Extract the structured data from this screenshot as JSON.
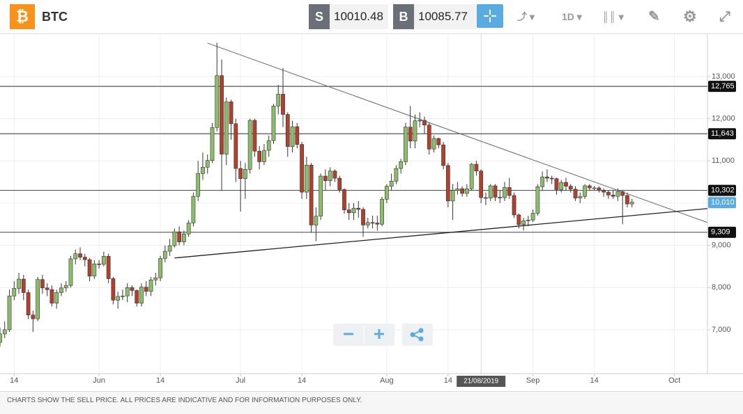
{
  "header": {
    "symbol": "BTC",
    "sell_label": "S",
    "sell_price": "10010.48",
    "buy_label": "B",
    "buy_price": "10085.77",
    "interval": "1D"
  },
  "footer": "CHARTS SHOW THE SELL PRICE. ALL PRICES ARE INDICATIVE AND FOR INFORMATION PURPOSES ONLY.",
  "chart_data": {
    "type": "candlestick",
    "x": [
      "2019-05-11",
      "2019-05-12",
      "2019-05-13",
      "2019-05-14",
      "2019-05-15",
      "2019-05-16",
      "2019-05-17",
      "2019-05-18",
      "2019-05-19",
      "2019-05-20",
      "2019-05-21",
      "2019-05-22",
      "2019-05-23",
      "2019-05-24",
      "2019-05-25",
      "2019-05-26",
      "2019-05-27",
      "2019-05-28",
      "2019-05-29",
      "2019-05-30",
      "2019-05-31",
      "2019-06-01",
      "2019-06-02",
      "2019-06-03",
      "2019-06-04",
      "2019-06-05",
      "2019-06-06",
      "2019-06-07",
      "2019-06-08",
      "2019-06-09",
      "2019-06-10",
      "2019-06-11",
      "2019-06-12",
      "2019-06-13",
      "2019-06-14",
      "2019-06-15",
      "2019-06-16",
      "2019-06-17",
      "2019-06-18",
      "2019-06-19",
      "2019-06-20",
      "2019-06-21",
      "2019-06-22",
      "2019-06-23",
      "2019-06-24",
      "2019-06-25",
      "2019-06-26",
      "2019-06-27",
      "2019-06-28",
      "2019-06-29",
      "2019-06-30",
      "2019-07-01",
      "2019-07-02",
      "2019-07-03",
      "2019-07-04",
      "2019-07-05",
      "2019-07-06",
      "2019-07-07",
      "2019-07-08",
      "2019-07-09",
      "2019-07-10",
      "2019-07-11",
      "2019-07-12",
      "2019-07-13",
      "2019-07-14",
      "2019-07-15",
      "2019-07-16",
      "2019-07-17",
      "2019-07-18",
      "2019-07-19",
      "2019-07-20",
      "2019-07-21",
      "2019-07-22",
      "2019-07-23",
      "2019-07-24",
      "2019-07-25",
      "2019-07-26",
      "2019-07-27",
      "2019-07-28",
      "2019-07-29",
      "2019-07-30",
      "2019-07-31",
      "2019-08-01",
      "2019-08-02",
      "2019-08-03",
      "2019-08-04",
      "2019-08-05",
      "2019-08-06",
      "2019-08-07",
      "2019-08-08",
      "2019-08-09",
      "2019-08-10",
      "2019-08-11",
      "2019-08-12",
      "2019-08-13",
      "2019-08-14",
      "2019-08-15",
      "2019-08-16",
      "2019-08-17",
      "2019-08-18",
      "2019-08-19",
      "2019-08-20",
      "2019-08-21",
      "2019-08-22",
      "2019-08-23",
      "2019-08-24",
      "2019-08-25",
      "2019-08-26",
      "2019-08-27",
      "2019-08-28",
      "2019-08-29",
      "2019-08-30",
      "2019-08-31",
      "2019-09-01",
      "2019-09-02",
      "2019-09-03",
      "2019-09-04",
      "2019-09-05",
      "2019-09-06",
      "2019-09-07",
      "2019-09-08",
      "2019-09-09",
      "2019-09-10",
      "2019-09-11",
      "2019-09-12",
      "2019-09-13",
      "2019-09-14",
      "2019-09-15",
      "2019-09-16",
      "2019-09-17",
      "2019-09-18",
      "2019-09-19",
      "2019-09-20",
      "2019-09-21",
      "2019-09-22"
    ],
    "open": [
      6700,
      6900,
      7000,
      7800,
      7980,
      8200,
      7880,
      7350,
      7260,
      8190,
      7990,
      7950,
      7630,
      7880,
      7990,
      8050,
      8680,
      8800,
      8720,
      8660,
      8270,
      8560,
      8550,
      8740,
      8210,
      7700,
      7790,
      7800,
      8000,
      7930,
      7630,
      8010,
      7910,
      8180,
      8230,
      8690,
      8860,
      8990,
      9320,
      9080,
      9270,
      9530,
      10160,
      10700,
      10850,
      11010,
      11790,
      13020,
      11160,
      12400,
      11880,
      10820,
      10580,
      10800,
      11960,
      11230,
      10980,
      11250,
      11480,
      12300,
      12580,
      12100,
      11340,
      11810,
      11390,
      10260,
      10900,
      9480,
      9690,
      10640,
      10530,
      10760,
      10590,
      10320,
      9840,
      9770,
      9880,
      9850,
      9480,
      9540,
      9530,
      9500,
      10090,
      10400,
      10520,
      10820,
      10980,
      11800,
      11470,
      11950,
      11960,
      11850,
      11280,
      11530,
      11380,
      10890,
      10050,
      10300,
      10340,
      10230,
      10340,
      10920,
      10760,
      10130,
      10120,
      10410,
      10140,
      10130,
      10370,
      10180,
      9720,
      9490,
      9580,
      9600,
      9760,
      10390,
      10620,
      10590,
      10580,
      10320,
      10490,
      10400,
      10330,
      10120,
      10160,
      10410,
      10360,
      10360,
      10300,
      10260,
      10190,
      10160,
      10270,
      10180,
      9980
    ],
    "high": [
      7050,
      7200,
      7950,
      8150,
      8350,
      8300,
      7950,
      7450,
      8250,
      8300,
      8100,
      8050,
      7950,
      8100,
      8150,
      8750,
      8900,
      8950,
      8800,
      8700,
      8650,
      8650,
      8850,
      8800,
      8250,
      7900,
      7950,
      8100,
      8050,
      7950,
      8100,
      8150,
      8250,
      8350,
      8750,
      9000,
      9150,
      9400,
      9450,
      9350,
      9600,
      10250,
      11000,
      11200,
      11150,
      11900,
      13800,
      13400,
      12500,
      12450,
      12000,
      11000,
      10950,
      12000,
      12000,
      11350,
      11400,
      11600,
      12350,
      12800,
      13200,
      12150,
      11950,
      11900,
      11450,
      11100,
      10950,
      9900,
      10700,
      10800,
      10850,
      10800,
      10650,
      10350,
      10000,
      10000,
      10050,
      9900,
      9650,
      9700,
      9700,
      10150,
      10450,
      10700,
      10900,
      11050,
      11900,
      12300,
      12100,
      12150,
      12050,
      11900,
      11600,
      11550,
      11450,
      10950,
      10450,
      10500,
      10400,
      10450,
      10950,
      11000,
      10800,
      10250,
      10450,
      10450,
      10300,
      10500,
      10600,
      10250,
      9750,
      9650,
      9700,
      9850,
      10450,
      10750,
      10800,
      10650,
      10600,
      10550,
      10600,
      10450,
      10400,
      10250,
      10450,
      10450,
      10400,
      10400,
      10350,
      10300,
      10300,
      10350,
      10300,
      10250,
      10100
    ],
    "low": [
      6600,
      6800,
      6950,
      7700,
      7850,
      7700,
      7250,
      6950,
      7200,
      7850,
      7800,
      7550,
      7500,
      7800,
      7900,
      8000,
      8550,
      8650,
      8500,
      8150,
      8200,
      8450,
      8500,
      8100,
      7600,
      7500,
      7700,
      7650,
      7800,
      7550,
      7550,
      7800,
      7800,
      8050,
      8150,
      8600,
      8750,
      8950,
      9000,
      9000,
      9200,
      9450,
      10050,
      10550,
      10700,
      10950,
      11700,
      10300,
      10900,
      11500,
      10500,
      9800,
      10100,
      10700,
      11100,
      10800,
      10900,
      11100,
      11400,
      12100,
      11800,
      11100,
      11200,
      11300,
      10100,
      10100,
      9300,
      9100,
      9600,
      10300,
      10400,
      10500,
      10250,
      9750,
      9600,
      9600,
      9650,
      9200,
      9400,
      9400,
      9350,
      9450,
      10000,
      10300,
      10450,
      10700,
      10900,
      11300,
      11300,
      11800,
      11650,
      11150,
      11200,
      11300,
      10800,
      9900,
      9600,
      10200,
      10150,
      10150,
      10300,
      10650,
      10000,
      9950,
      10050,
      10050,
      10000,
      10050,
      10100,
      9650,
      9400,
      9350,
      9450,
      9550,
      9700,
      10300,
      10500,
      10450,
      10200,
      10250,
      10300,
      10250,
      10050,
      10000,
      10100,
      10300,
      10300,
      10250,
      10150,
      10100,
      10100,
      10050,
      9500,
      9900,
      9900
    ],
    "close": [
      6900,
      7000,
      7800,
      7980,
      8200,
      7880,
      7350,
      7260,
      8190,
      7990,
      7950,
      7630,
      7880,
      7990,
      8050,
      8680,
      8800,
      8720,
      8660,
      8270,
      8560,
      8550,
      8740,
      8210,
      7700,
      7790,
      7800,
      8000,
      7930,
      7630,
      8010,
      7910,
      8180,
      8230,
      8690,
      8860,
      8990,
      9320,
      9080,
      9270,
      9530,
      10160,
      10700,
      10850,
      11010,
      11790,
      13020,
      11160,
      12400,
      11880,
      10820,
      10580,
      10800,
      11960,
      11230,
      10980,
      11250,
      11480,
      12300,
      12580,
      12100,
      11340,
      11810,
      11390,
      10260,
      10900,
      9480,
      9690,
      10640,
      10530,
      10760,
      10590,
      10320,
      9840,
      9770,
      9880,
      9850,
      9480,
      9540,
      9530,
      9500,
      10090,
      10400,
      10520,
      10820,
      10980,
      11800,
      11470,
      11950,
      11960,
      11850,
      11280,
      11530,
      11380,
      10890,
      10050,
      10300,
      10340,
      10230,
      10340,
      10920,
      10760,
      10130,
      10120,
      10410,
      10140,
      10130,
      10370,
      10180,
      9720,
      9490,
      9580,
      9600,
      9760,
      10390,
      10620,
      10590,
      10580,
      10320,
      10490,
      10400,
      10330,
      10120,
      10160,
      10410,
      10360,
      10360,
      10300,
      10260,
      10190,
      10160,
      10270,
      10180,
      9980,
      10020
    ],
    "up_color": "#8cbd6a",
    "down_color": "#b0412d",
    "xlim": [
      "2019-05-11",
      "2019-10-08"
    ],
    "xticks": [
      {
        "value": "2019-05-14",
        "label": "14"
      },
      {
        "value": "2019-06-01",
        "label": "Jun"
      },
      {
        "value": "2019-06-14",
        "label": "14"
      },
      {
        "value": "2019-07-01",
        "label": "Jul"
      },
      {
        "value": "2019-07-14",
        "label": "14"
      },
      {
        "value": "2019-08-01",
        "label": "Aug"
      },
      {
        "value": "2019-08-14",
        "label": "14"
      },
      {
        "value": "2019-09-01",
        "label": "Sep"
      },
      {
        "value": "2019-09-14",
        "label": "14"
      },
      {
        "value": "2019-10-01",
        "label": "Oct"
      }
    ],
    "ylim": [
      5960,
      14020
    ],
    "yticks": [
      {
        "value": 7000,
        "label": "7,000"
      },
      {
        "value": 8000,
        "label": "8,000"
      },
      {
        "value": 9000,
        "label": "9,000"
      },
      {
        "value": 10000,
        "label": "10,000"
      },
      {
        "value": 11000,
        "label": "11,000"
      },
      {
        "value": 12000,
        "label": "12,000"
      },
      {
        "value": 13000,
        "label": "13,000"
      }
    ],
    "grid": true,
    "levels": [
      {
        "value": 12765,
        "label": "12,765"
      },
      {
        "value": 11643,
        "label": "11,643"
      },
      {
        "value": 10302,
        "label": "10,302"
      },
      {
        "value": 9309,
        "label": "9,309"
      }
    ],
    "current_price": {
      "value": 10010,
      "label": "10,010",
      "color": "#5aabe0"
    },
    "trend_lines": [
      {
        "x": [
          "2019-06-24",
          "2019-10-08"
        ],
        "y": [
          13790,
          9540
        ]
      },
      {
        "x": [
          "2019-06-17",
          "2019-10-08"
        ],
        "y": [
          8700,
          9870
        ]
      }
    ],
    "crosshair": {
      "x": "2019-08-21",
      "label": "21/08/2019"
    }
  }
}
